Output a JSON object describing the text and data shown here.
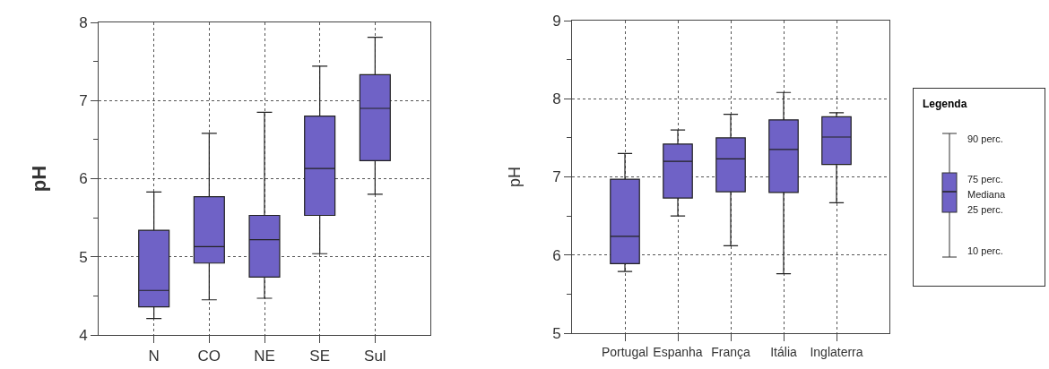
{
  "chart_data": [
    {
      "type": "box",
      "ylabel": "pH",
      "categories": [
        "N",
        "CO",
        "NE",
        "SE",
        "Sul"
      ],
      "color": "#6f62c6",
      "ylim": [
        4,
        8
      ],
      "yticks": [
        4,
        {
          "value": 4.5,
          "label": null
        },
        5,
        {
          "value": 5.5,
          "label": null
        },
        6,
        {
          "value": 6.5,
          "label": null
        },
        7,
        {
          "value": 7.5,
          "label": null
        },
        8
      ],
      "grid": true,
      "boxes": [
        {
          "low": 4.21,
          "q1": 4.36,
          "median": 4.57,
          "q3": 5.34,
          "high": 5.83
        },
        {
          "low": 4.45,
          "q1": 4.92,
          "median": 5.13,
          "q3": 5.77,
          "high": 6.58
        },
        {
          "low": 4.47,
          "q1": 4.74,
          "median": 5.22,
          "q3": 5.53,
          "high": 6.85
        },
        {
          "low": 5.04,
          "q1": 5.53,
          "median": 6.13,
          "q3": 6.8,
          "high": 7.44
        },
        {
          "low": 5.8,
          "q1": 6.23,
          "median": 6.9,
          "q3": 7.33,
          "high": 7.81
        }
      ]
    },
    {
      "type": "box",
      "ylabel": "pH",
      "categories": [
        "Portugal",
        "Espanha",
        "França",
        "Itália",
        "Inglaterra"
      ],
      "color": "#6f62c6",
      "ylim": [
        5,
        9
      ],
      "yticks": [
        5,
        {
          "value": 5.5,
          "label": null
        },
        6,
        {
          "value": 6.5,
          "label": null
        },
        7,
        {
          "value": 7.5,
          "label": null
        },
        8,
        {
          "value": 8.5,
          "label": null
        },
        9
      ],
      "grid": true,
      "boxes": [
        {
          "low": 5.79,
          "q1": 5.89,
          "median": 6.24,
          "q3": 6.97,
          "high": 7.3
        },
        {
          "low": 6.5,
          "q1": 6.73,
          "median": 7.2,
          "q3": 7.42,
          "high": 7.6
        },
        {
          "low": 6.12,
          "q1": 6.81,
          "median": 7.23,
          "q3": 7.5,
          "high": 7.8
        },
        {
          "low": 5.76,
          "q1": 6.8,
          "median": 7.35,
          "q3": 7.73,
          "high": 8.08
        },
        {
          "low": 6.67,
          "q1": 7.16,
          "median": 7.51,
          "q3": 7.77,
          "high": 7.82
        }
      ]
    },
    {
      "type": "other",
      "title": "Legenda",
      "annotations": [
        "90 perc.",
        "75 perc.",
        "Mediana",
        "25 perc.",
        "10 perc."
      ]
    }
  ]
}
